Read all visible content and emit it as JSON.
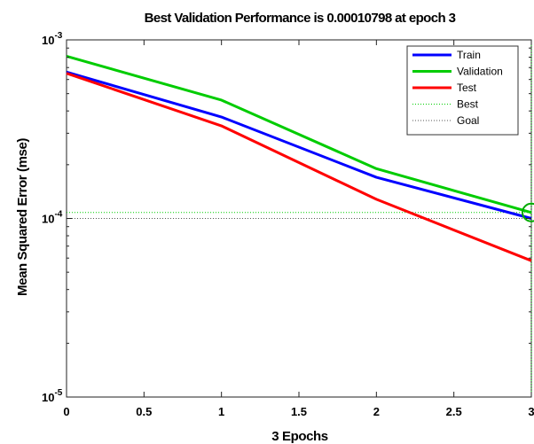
{
  "chart_data": {
    "type": "line",
    "title": "Best Validation Performance is 0.00010798 at epoch 3",
    "xlabel": "3 Epochs",
    "ylabel": "Mean Squared Error  (mse)",
    "y_scale": "log",
    "xlim": [
      0,
      3
    ],
    "ylim": [
      1e-05,
      0.001
    ],
    "x_ticks": [
      "0",
      "0.5",
      "1",
      "1.5",
      "2",
      "2.5",
      "3"
    ],
    "x_tick_values": [
      0,
      0.5,
      1,
      1.5,
      2,
      2.5,
      3
    ],
    "y_ticks": [
      {
        "value": 0.001,
        "base": "10",
        "exp": "-3"
      },
      {
        "value": 0.0001,
        "base": "10",
        "exp": "-4"
      },
      {
        "value": 1e-05,
        "base": "10",
        "exp": "-5"
      }
    ],
    "legend_position": "top-right",
    "x": [
      0,
      1,
      2,
      3
    ],
    "series": [
      {
        "name": "Train",
        "color": "#0000ff",
        "style": "solid",
        "values": [
          0.00066,
          0.00037,
          0.00017,
          0.0001
        ]
      },
      {
        "name": "Validation",
        "color": "#00cc00",
        "style": "solid",
        "values": [
          0.00081,
          0.00046,
          0.00019,
          0.00010798
        ]
      },
      {
        "name": "Test",
        "color": "#ff0000",
        "style": "solid",
        "values": [
          0.00065,
          0.00033,
          0.000128,
          5.8e-05
        ]
      }
    ],
    "reference_lines": [
      {
        "name": "Best",
        "color": "#00cc00",
        "style": "dotted",
        "x": 3,
        "y": 0.00010798
      },
      {
        "name": "Goal",
        "color": "#555555",
        "style": "dotted",
        "y": 0.0001
      }
    ],
    "best_marker": {
      "x": 3,
      "y": 0.00010798,
      "color": "#00aa00"
    }
  }
}
